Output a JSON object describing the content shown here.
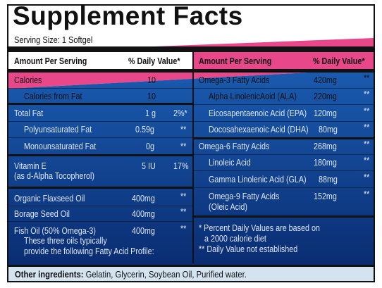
{
  "title": "Supplement Facts",
  "serving_size": "Serving Size: 1 Softgel",
  "left_header": {
    "amount": "Amount Per Serving",
    "dv": "% Daily Value*"
  },
  "right_header": {
    "amount": "Amount Per Serving",
    "dv": "% Daily Value*"
  },
  "left_rows": [
    {
      "name": "Calories",
      "amount": "10",
      "dv": ""
    },
    {
      "name": "Calories from Fat",
      "amount": "10",
      "dv": ""
    },
    {
      "name": "Total Fat",
      "amount": "1 g",
      "dv": "2%*"
    },
    {
      "name": "Polyunsaturated Fat",
      "amount": "0.59g",
      "dv": "**"
    },
    {
      "name": "Monounsaturated Fat",
      "amount": "0g",
      "dv": "**"
    },
    {
      "name": "Vitamin E",
      "name2": "(as d-Alpha Tocopherol)",
      "amount": "5 IU",
      "dv": "17%"
    },
    {
      "name": "Organic Flaxseed Oil",
      "amount": "400mg",
      "dv": "**"
    },
    {
      "name": "Borage Seed Oil",
      "amount": "400mg",
      "dv": "**"
    },
    {
      "name": "Fish Oil (50% Omega-3)",
      "amount": "400mg",
      "dv": "**"
    }
  ],
  "fish_note": [
    "These three oils typically",
    "provide the following Fatty Acid Profile:"
  ],
  "right_rows": [
    {
      "name": "Omega-3 Fatty Acids",
      "amount": "420mg",
      "dv": "**"
    },
    {
      "name": "Alpha LinolenicAoid (ALA)",
      "amount": "220mg",
      "dv": "**"
    },
    {
      "name": "Eicosapentaenoic Acid (EPA)",
      "amount": "120mg",
      "dv": "**"
    },
    {
      "name": "Docosahexaenoic Acid (DHA)",
      "amount": "80mg",
      "dv": "**"
    },
    {
      "name": "Omega-6 Fatty Acids",
      "amount": "268mg",
      "dv": "**"
    },
    {
      "name": "Linoleic Acid",
      "amount": "180mg",
      "dv": "**"
    },
    {
      "name": "Gamma Linolenic Acid (GLA)",
      "amount": "88mg",
      "dv": "**"
    },
    {
      "name": "Omega-9 Fatty Acids",
      "name2": "(Oleic Acid)",
      "amount": "152mg",
      "dv": "**"
    }
  ],
  "notes": [
    "* Percent Daily Values are based on",
    "a 2000 calorie diet",
    "** Daily Value not established"
  ],
  "footer": {
    "label": "Other ingredients:",
    "text": "Gelatin, Glycerin, Soybean Oil, Purified water."
  },
  "colors": {
    "pink": "#e8488a",
    "blue": "#0f3e8e",
    "deep_blue": "#0a2a6e",
    "footer_bg": "#d4e3f0"
  }
}
